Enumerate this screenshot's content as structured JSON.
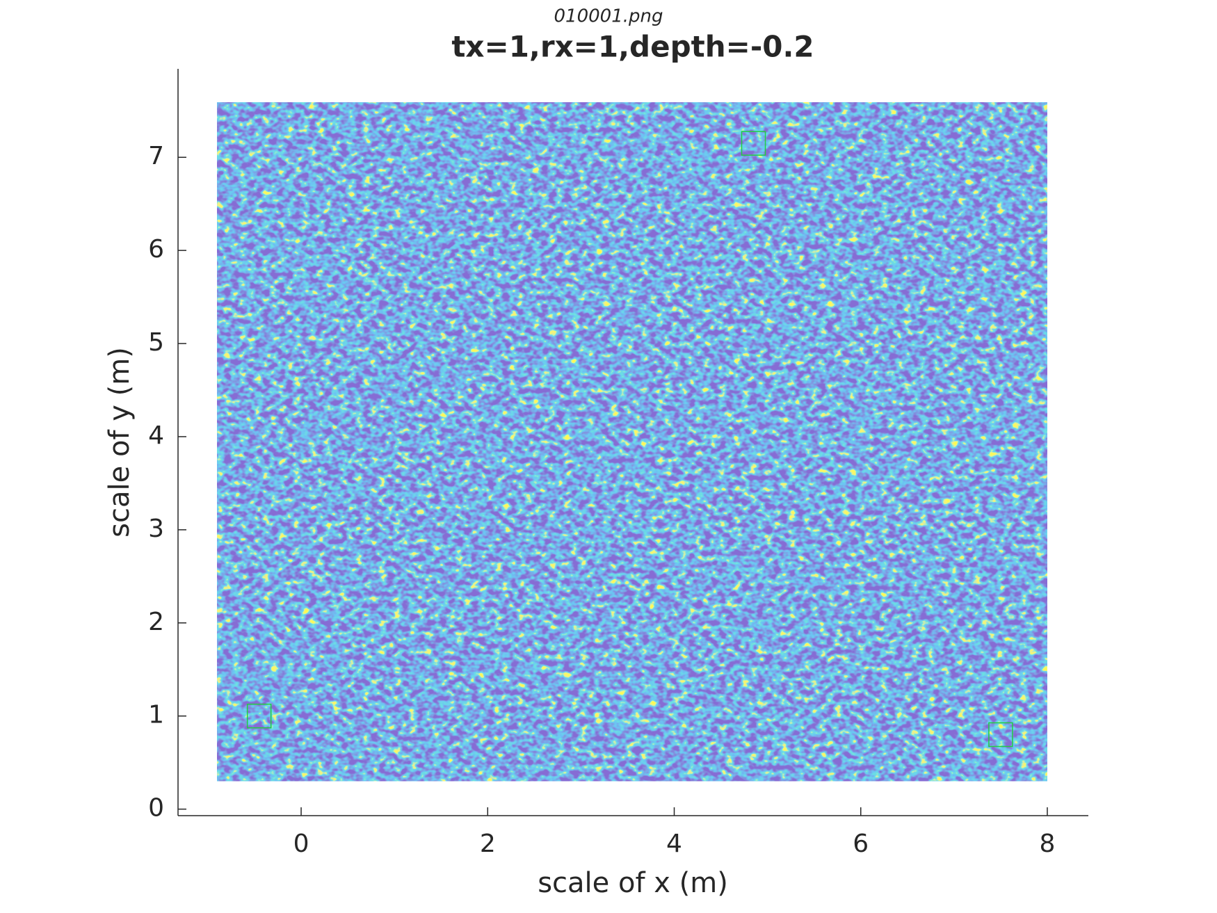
{
  "chart_data": {
    "type": "heatmap",
    "subtitle": "010001.png",
    "title": "tx=1,rx=1,depth=-0.2",
    "x_label": "scale of x (m)",
    "y_label": "scale of y (m)",
    "xlim": [
      -1.32,
      8.44
    ],
    "ylim": [
      -0.07,
      7.95
    ],
    "xticks": [
      0,
      2,
      4,
      6,
      8
    ],
    "yticks": [
      0,
      1,
      2,
      3,
      4,
      5,
      6,
      7
    ],
    "extent": {
      "x": [
        -0.9,
        8.0
      ],
      "y": [
        0.3,
        7.59
      ]
    },
    "markers": {
      "color": "#22cc44",
      "x": [
        4.85,
        -0.45,
        7.5
      ],
      "y": [
        7.15,
        1.0,
        0.8
      ]
    }
  }
}
